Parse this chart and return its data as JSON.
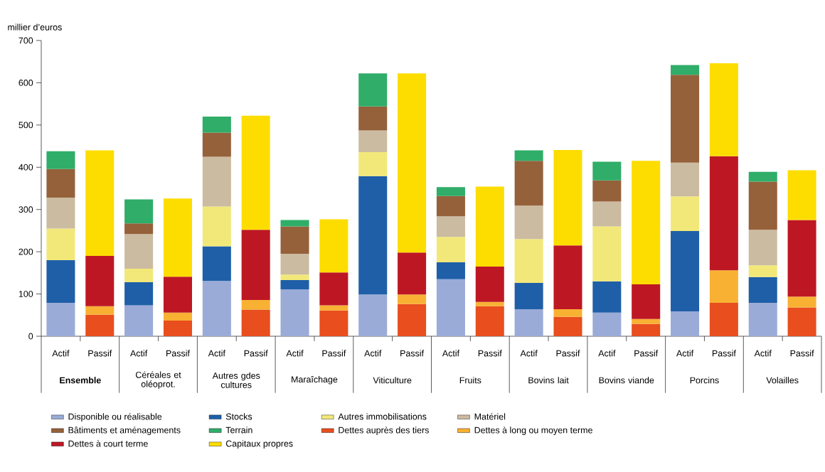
{
  "chart_data": {
    "type": "bar",
    "stacked": true,
    "ylabel": "millier d’euros",
    "legend": "bottom",
    "categories": [
      "Actif",
      "Passif",
      "Actif",
      "Passif",
      "Actif",
      "Passif",
      "Actif",
      "Passif",
      "Actif",
      "Passif",
      "Actif",
      "Passif",
      "Actif",
      "Passif",
      "Actif",
      "Passif",
      "Actif",
      "Passif",
      "Actif",
      "Passif"
    ],
    "annotations": [
      "Ensemble",
      "Céréales et oléoprot.",
      "Autres gdes cultures",
      "Maraîchage",
      "Viticulture",
      "Fruits",
      "Bovins lait",
      "Bovins viande",
      "Porcins",
      "Volailles"
    ],
    "ylim": [
      0,
      700
    ],
    "yticks": [
      0,
      100,
      200,
      300,
      400,
      500,
      600,
      700
    ],
    "series": [
      {
        "name": "Disponible ou réalisable",
        "color": "#9aabd7",
        "values": [
          79,
          null,
          73,
          null,
          131,
          null,
          111,
          null,
          99,
          null,
          135,
          null,
          64,
          null,
          56,
          null,
          59,
          null,
          79,
          null
        ]
      },
      {
        "name": "Stocks",
        "color": "#1f5fa8",
        "values": [
          101,
          null,
          55,
          null,
          82,
          null,
          22,
          null,
          280,
          null,
          40,
          null,
          62,
          null,
          74,
          null,
          190,
          null,
          61,
          null
        ]
      },
      {
        "name": "Autres immobilisations",
        "color": "#f2e87a",
        "values": [
          75,
          null,
          32,
          null,
          94,
          null,
          13,
          null,
          57,
          null,
          60,
          null,
          104,
          null,
          130,
          null,
          82,
          null,
          28,
          null
        ]
      },
      {
        "name": "Matériel",
        "color": "#cbbba0",
        "values": [
          73,
          null,
          82,
          null,
          118,
          null,
          49,
          null,
          51,
          null,
          49,
          null,
          79,
          null,
          59,
          null,
          80,
          null,
          84,
          null
        ]
      },
      {
        "name": "Bâtiments et aménagements",
        "color": "#95613a",
        "values": [
          68,
          null,
          25,
          null,
          57,
          null,
          65,
          null,
          57,
          null,
          48,
          null,
          106,
          null,
          50,
          null,
          208,
          null,
          114,
          null
        ]
      },
      {
        "name": "Terrain",
        "color": "#2fad69",
        "values": [
          42,
          null,
          57,
          null,
          38,
          null,
          15,
          null,
          78,
          null,
          21,
          null,
          25,
          null,
          44,
          null,
          23,
          null,
          23,
          null
        ]
      },
      {
        "name": "Dettes auprès des tiers",
        "color": "#e84e1e",
        "values": [
          null,
          51,
          null,
          37,
          null,
          63,
          null,
          61,
          null,
          76,
          null,
          71,
          null,
          46,
          null,
          29,
          null,
          79,
          null,
          68
        ]
      },
      {
        "name": "Dettes à long ou moyen terme",
        "color": "#f8b133",
        "values": [
          null,
          20,
          null,
          19,
          null,
          23,
          null,
          12,
          null,
          23,
          null,
          10,
          null,
          18,
          null,
          12,
          null,
          77,
          null,
          26
        ]
      },
      {
        "name": "Dettes à court terme",
        "color": "#be1724",
        "values": [
          null,
          119,
          null,
          85,
          null,
          166,
          null,
          78,
          null,
          99,
          null,
          84,
          null,
          151,
          null,
          82,
          null,
          270,
          null,
          181
        ]
      },
      {
        "name": "Capitaux propres",
        "color": "#fddd00",
        "values": [
          null,
          250,
          null,
          185,
          null,
          270,
          null,
          126,
          null,
          424,
          null,
          189,
          null,
          226,
          null,
          292,
          null,
          220,
          null,
          118
        ]
      }
    ]
  }
}
